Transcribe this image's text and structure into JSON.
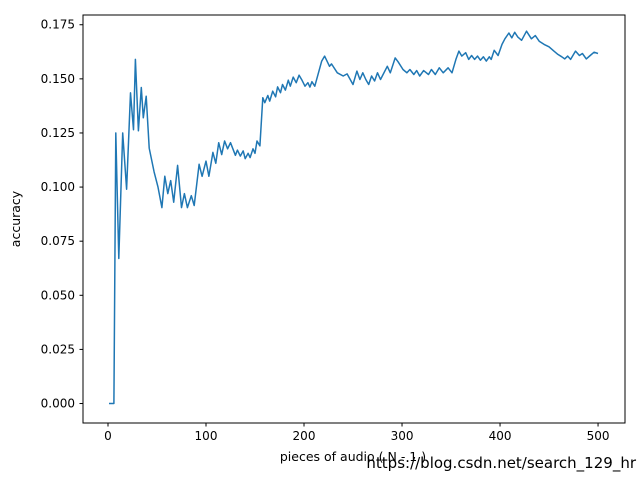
{
  "figure": {
    "background": "#ffffff",
    "spine_color": "#000000",
    "watermark": {
      "text": "https://blog.csdn.net/search_129_hr",
      "color": "#d8d8d8"
    }
  },
  "chart_data": {
    "type": "line",
    "title": "",
    "xlabel": "pieces of audio ( N - 1 )",
    "ylabel": "accuracy",
    "grid": false,
    "legend": null,
    "line_color": "#1f77b4",
    "line_width": 1.5,
    "xlim": [
      -25.5,
      527.5
    ],
    "ylim": [
      -0.009,
      0.1795
    ],
    "x_ticks": {
      "values": [
        0,
        100,
        200,
        300,
        400,
        500
      ],
      "labels": [
        "0",
        "100",
        "200",
        "300",
        "400",
        "500"
      ]
    },
    "y_ticks": {
      "values": [
        0.0,
        0.025,
        0.05,
        0.075,
        0.1,
        0.125,
        0.15,
        0.175
      ],
      "labels": [
        "0.000",
        "0.025",
        "0.050",
        "0.075",
        "0.100",
        "0.125",
        "0.150",
        "0.175"
      ]
    },
    "series": [
      {
        "name": "accuracy",
        "x": [
          1,
          6,
          8,
          11,
          15,
          19,
          23,
          26,
          28,
          31,
          34,
          36,
          39,
          42,
          47,
          51,
          55,
          58,
          61,
          64,
          67,
          71,
          75,
          78,
          81,
          85,
          88,
          93,
          96,
          100,
          103,
          107,
          110,
          113,
          116,
          119,
          122,
          125,
          130,
          132,
          135,
          138,
          140,
          143,
          145,
          148,
          150,
          152,
          155,
          158,
          160,
          163,
          165,
          168,
          171,
          173,
          176,
          178,
          181,
          184,
          186,
          189,
          192,
          195,
          198,
          201,
          204,
          206,
          208,
          211,
          218,
          221,
          226,
          228,
          234,
          240,
          244,
          250,
          254,
          257,
          260,
          263,
          266,
          269,
          272,
          275,
          278,
          285,
          288,
          293,
          296,
          301,
          305,
          308,
          312,
          315,
          318,
          322,
          327,
          330,
          334,
          338,
          342,
          347,
          351,
          355,
          358,
          361,
          365,
          368,
          371,
          374,
          377,
          380,
          383,
          386,
          389,
          391,
          394,
          398,
          402,
          405,
          409,
          412,
          415,
          418,
          422,
          427,
          432,
          436,
          440,
          445,
          450,
          455,
          459,
          463,
          466,
          469,
          472,
          477,
          481,
          484,
          488,
          492,
          496,
          500
        ],
        "y": [
          0.0,
          0.0,
          0.125,
          0.067,
          0.125,
          0.099,
          0.1435,
          0.1265,
          0.159,
          0.126,
          0.146,
          0.132,
          0.142,
          0.118,
          0.107,
          0.1,
          0.0905,
          0.105,
          0.097,
          0.103,
          0.093,
          0.11,
          0.0905,
          0.097,
          0.0905,
          0.096,
          0.0915,
          0.1105,
          0.105,
          0.112,
          0.105,
          0.116,
          0.111,
          0.1205,
          0.115,
          0.1213,
          0.1177,
          0.1205,
          0.1147,
          0.1171,
          0.1143,
          0.1167,
          0.1131,
          0.1156,
          0.1136,
          0.1177,
          0.1156,
          0.1213,
          0.119,
          0.1413,
          0.139,
          0.1423,
          0.1397,
          0.1443,
          0.1417,
          0.1463,
          0.1436,
          0.1474,
          0.1448,
          0.1494,
          0.1466,
          0.1508,
          0.1482,
          0.1517,
          0.1493,
          0.1466,
          0.1482,
          0.1462,
          0.1487,
          0.1466,
          0.1582,
          0.1605,
          0.1558,
          0.1569,
          0.1528,
          0.1513,
          0.1523,
          0.1474,
          0.1536,
          0.1497,
          0.1528,
          0.1497,
          0.1474,
          0.1513,
          0.149,
          0.1528,
          0.1497,
          0.1558,
          0.1528,
          0.1597,
          0.1579,
          0.1543,
          0.1528,
          0.1543,
          0.152,
          0.1538,
          0.1513,
          0.1538,
          0.152,
          0.1543,
          0.152,
          0.1551,
          0.1528,
          0.1551,
          0.1528,
          0.159,
          0.1628,
          0.1605,
          0.1621,
          0.159,
          0.1608,
          0.159,
          0.1605,
          0.1586,
          0.1602,
          0.1582,
          0.1602,
          0.159,
          0.1632,
          0.1608,
          0.1659,
          0.1685,
          0.1712,
          0.1689,
          0.1715,
          0.1694,
          0.1678,
          0.172,
          0.1685,
          0.17,
          0.1674,
          0.1659,
          0.1648,
          0.1628,
          0.1613,
          0.1602,
          0.1592,
          0.1605,
          0.159,
          0.1628,
          0.1608,
          0.1617,
          0.1592,
          0.1608,
          0.1623,
          0.1617
        ]
      }
    ]
  },
  "layout_note": "line chart, no grid, no legend, watermark bottom-right"
}
